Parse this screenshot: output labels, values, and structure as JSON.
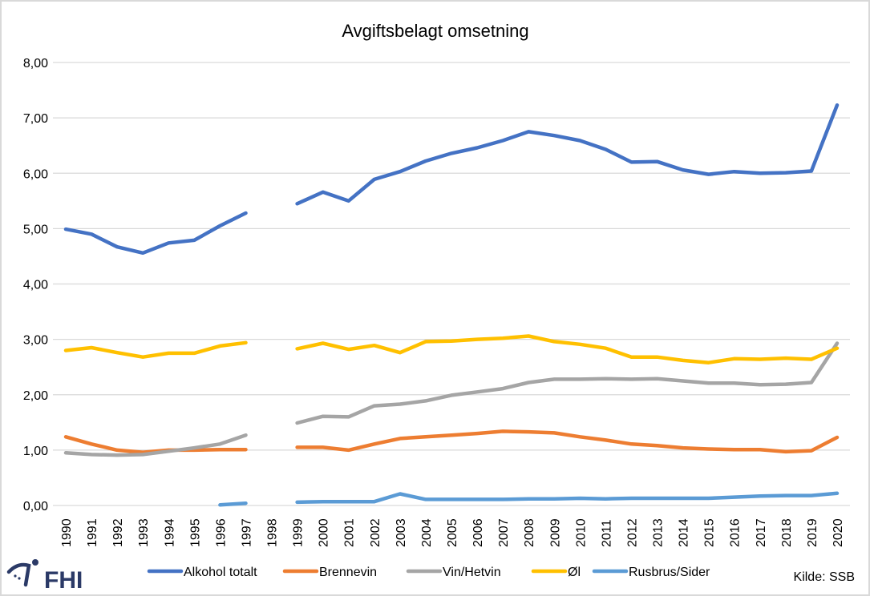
{
  "chart_data": {
    "type": "line",
    "title": "Avgiftsbelagt omsetning",
    "xlabel": "",
    "ylabel": "",
    "ylim": [
      0,
      8
    ],
    "y_ticks": [
      "0,00",
      "1,00",
      "2,00",
      "3,00",
      "4,00",
      "5,00",
      "6,00",
      "7,00",
      "8,00"
    ],
    "y_tick_values": [
      0,
      1,
      2,
      3,
      4,
      5,
      6,
      7,
      8
    ],
    "grid": true,
    "legend_position": "bottom",
    "categories": [
      "1990",
      "1991",
      "1992",
      "1993",
      "1994",
      "1995",
      "1996",
      "1997",
      "1998",
      "1999",
      "2000",
      "2001",
      "2002",
      "2003",
      "2004",
      "2005",
      "2006",
      "2007",
      "2008",
      "2009",
      "2010",
      "2011",
      "2012",
      "2013",
      "2014",
      "2015",
      "2016",
      "2017",
      "2018",
      "2019",
      "2020"
    ],
    "series": [
      {
        "name": "Alkohol totalt",
        "color": "#4472c4",
        "values": [
          4.99,
          4.9,
          4.67,
          4.56,
          4.74,
          4.79,
          5.05,
          5.28,
          null,
          5.45,
          5.66,
          5.5,
          5.89,
          6.03,
          6.22,
          6.36,
          6.46,
          6.59,
          6.75,
          6.68,
          6.59,
          6.43,
          6.2,
          6.21,
          6.06,
          5.98,
          6.03,
          6.0,
          6.01,
          6.04,
          7.23
        ]
      },
      {
        "name": "Brennevin",
        "color": "#ed7d31",
        "values": [
          1.24,
          1.11,
          1.0,
          0.96,
          1.0,
          1.0,
          1.01,
          1.01,
          null,
          1.05,
          1.05,
          1.0,
          1.11,
          1.21,
          1.24,
          1.27,
          1.3,
          1.34,
          1.33,
          1.31,
          1.24,
          1.18,
          1.11,
          1.08,
          1.04,
          1.02,
          1.01,
          1.01,
          0.97,
          0.99,
          1.23
        ]
      },
      {
        "name": "Vin/Hetvin",
        "color": "#a5a5a5",
        "values": [
          0.95,
          0.92,
          0.91,
          0.92,
          0.98,
          1.04,
          1.11,
          1.27,
          null,
          1.49,
          1.61,
          1.6,
          1.8,
          1.83,
          1.89,
          1.99,
          2.05,
          2.11,
          2.22,
          2.28,
          2.28,
          2.29,
          2.28,
          2.29,
          2.25,
          2.21,
          2.21,
          2.18,
          2.19,
          2.22,
          2.93
        ]
      },
      {
        "name": "Øl",
        "color": "#ffc000",
        "values": [
          2.8,
          2.85,
          2.76,
          2.68,
          2.75,
          2.75,
          2.88,
          2.94,
          null,
          2.83,
          2.93,
          2.82,
          2.89,
          2.76,
          2.96,
          2.97,
          3.0,
          3.02,
          3.06,
          2.96,
          2.91,
          2.84,
          2.68,
          2.68,
          2.62,
          2.58,
          2.65,
          2.64,
          2.66,
          2.64,
          2.84
        ]
      },
      {
        "name": "Rusbrus/Sider",
        "color": "#5b9bd5",
        "values": [
          null,
          null,
          null,
          null,
          null,
          null,
          0.01,
          0.04,
          null,
          0.06,
          0.07,
          0.07,
          0.07,
          0.21,
          0.11,
          0.11,
          0.11,
          0.11,
          0.12,
          0.12,
          0.13,
          0.12,
          0.13,
          0.13,
          0.13,
          0.13,
          0.15,
          0.17,
          0.18,
          0.18,
          0.22
        ]
      }
    ]
  },
  "footer": {
    "logo": "FHI",
    "source": "Kilde: SSB"
  },
  "colors": {
    "grid": "#d9d9d9",
    "frame": "#d9d9d9",
    "logo": "#2b3a67"
  }
}
